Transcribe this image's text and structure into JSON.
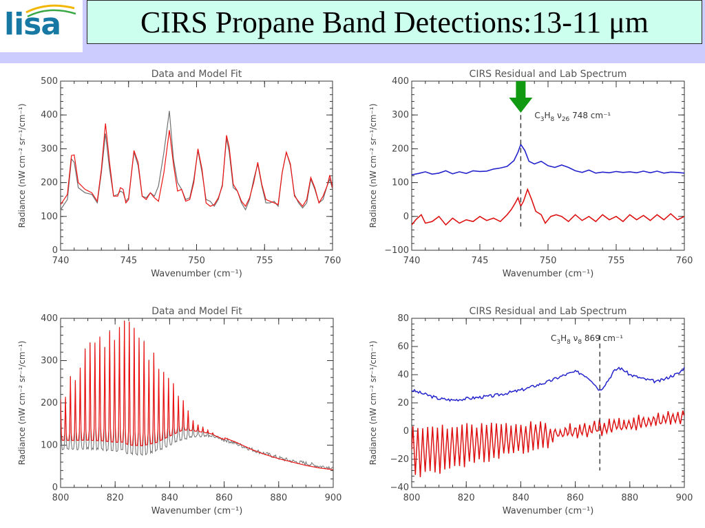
{
  "header": {
    "logo_text": "lisa",
    "title": "CIRS Propane Band Detections:13-11 μm"
  },
  "colors": {
    "data": "#707070",
    "model": "#ee1111",
    "lab": "#2222cc",
    "residual": "#dd1111",
    "arrow": "#119911"
  },
  "chart_data": [
    {
      "type": "line",
      "title": "Data and Model Fit",
      "xlabel": "Wavenumber (cm⁻¹)",
      "ylabel": "Radiance (nW cm⁻² sr⁻¹/cm⁻¹)",
      "xlim": [
        740,
        760
      ],
      "ylim": [
        0,
        500
      ],
      "xticks": [
        740,
        745,
        750,
        755,
        760
      ],
      "yticks": [
        0,
        100,
        200,
        300,
        400,
        500
      ],
      "grid": false,
      "series": [
        {
          "color": "#707070",
          "x": [
            740.0,
            740.5,
            740.8,
            741.0,
            741.3,
            741.8,
            742.3,
            742.7,
            743.0,
            743.3,
            743.6,
            743.9,
            744.2,
            744.4,
            744.6,
            744.8,
            745.0,
            745.4,
            745.7,
            746.0,
            746.3,
            746.6,
            746.9,
            747.2,
            747.6,
            748.0,
            748.3,
            748.6,
            748.9,
            749.2,
            749.5,
            749.8,
            750.1,
            750.4,
            750.7,
            751.0,
            751.3,
            751.6,
            751.9,
            752.2,
            752.4,
            752.7,
            753.0,
            753.3,
            753.6,
            753.9,
            754.2,
            754.5,
            754.8,
            755.1,
            755.4,
            755.7,
            756.0,
            756.3,
            756.6,
            756.9,
            757.2,
            757.5,
            757.8,
            758.1,
            758.4,
            758.7,
            759.0,
            759.3,
            759.6,
            759.8,
            760.0
          ],
          "y": [
            120,
            150,
            270,
            260,
            185,
            170,
            165,
            140,
            230,
            345,
            240,
            160,
            165,
            175,
            170,
            145,
            155,
            290,
            250,
            160,
            155,
            170,
            160,
            190,
            290,
            412,
            270,
            200,
            180,
            150,
            155,
            210,
            295,
            230,
            150,
            145,
            130,
            150,
            195,
            330,
            290,
            185,
            175,
            140,
            120,
            150,
            210,
            255,
            190,
            140,
            140,
            145,
            130,
            230,
            290,
            250,
            165,
            140,
            125,
            140,
            210,
            180,
            140,
            150,
            190,
            210,
            180
          ]
        },
        {
          "color": "#ee1111",
          "x": [
            740.0,
            740.5,
            740.8,
            741.0,
            741.3,
            741.8,
            742.3,
            742.7,
            743.0,
            743.3,
            743.6,
            743.9,
            744.2,
            744.4,
            744.6,
            744.8,
            745.0,
            745.4,
            745.7,
            746.0,
            746.3,
            746.6,
            746.9,
            747.2,
            747.6,
            748.0,
            748.3,
            748.6,
            748.9,
            749.2,
            749.5,
            749.8,
            750.1,
            750.4,
            750.7,
            751.0,
            751.3,
            751.6,
            751.9,
            752.2,
            752.4,
            752.7,
            753.0,
            753.3,
            753.6,
            753.9,
            754.2,
            754.5,
            754.8,
            755.1,
            755.4,
            755.7,
            756.0,
            756.3,
            756.6,
            756.9,
            757.2,
            757.5,
            757.8,
            758.1,
            758.4,
            758.7,
            759.0,
            759.3,
            759.6,
            759.8,
            760.0
          ],
          "y": [
            135,
            165,
            280,
            282,
            200,
            180,
            170,
            145,
            240,
            375,
            260,
            160,
            160,
            185,
            180,
            140,
            150,
            295,
            260,
            160,
            150,
            170,
            155,
            145,
            230,
            355,
            255,
            175,
            180,
            145,
            150,
            200,
            300,
            240,
            140,
            130,
            135,
            155,
            190,
            340,
            305,
            195,
            175,
            145,
            130,
            155,
            200,
            260,
            195,
            150,
            145,
            140,
            135,
            230,
            290,
            255,
            160,
            145,
            130,
            150,
            215,
            185,
            140,
            160,
            190,
            222,
            185
          ]
        },
        {
          "color": "#707070",
          "x": [
            747.95
          ],
          "y": [
            412
          ]
        }
      ]
    },
    {
      "type": "line",
      "title": "CIRS Residual and Lab Spectrum",
      "xlabel": "Wavenumber (cm⁻¹)",
      "ylabel": "Radiance (nW cm⁻² sr⁻¹/cm⁻¹)",
      "xlim": [
        740,
        760
      ],
      "ylim": [
        -100,
        400
      ],
      "xticks": [
        740,
        745,
        750,
        755,
        760
      ],
      "yticks": [
        -100,
        0,
        100,
        200,
        300,
        400
      ],
      "grid": false,
      "vline": 748,
      "annotation": {
        "species": "C3H8",
        "mode": "ν26",
        "text": "748 cm⁻¹"
      },
      "series": [
        {
          "color": "#2222cc",
          "x": [
            740,
            740.5,
            741,
            741.5,
            742,
            742.5,
            743,
            743.5,
            744,
            744.5,
            745,
            745.5,
            746,
            746.5,
            747,
            747.5,
            747.8,
            748.0,
            748.3,
            748.6,
            749,
            749.5,
            750,
            750.5,
            751,
            751.5,
            752,
            752.5,
            753,
            753.5,
            754,
            754.5,
            755,
            755.5,
            756,
            756.5,
            757,
            757.5,
            758,
            758.5,
            759,
            759.5,
            760
          ],
          "y": [
            123,
            127,
            132,
            125,
            128,
            135,
            126,
            132,
            127,
            135,
            133,
            134,
            140,
            143,
            148,
            165,
            190,
            213,
            195,
            163,
            155,
            163,
            150,
            145,
            152,
            145,
            135,
            130,
            137,
            128,
            131,
            129,
            133,
            130,
            132,
            129,
            134,
            129,
            134,
            128,
            131,
            130,
            128
          ]
        },
        {
          "color": "#dd1111",
          "x": [
            740,
            740.3,
            740.7,
            741,
            741.5,
            742,
            742.5,
            743,
            743.5,
            744,
            744.5,
            745,
            745.5,
            746,
            746.5,
            747,
            747.3,
            747.6,
            747.8,
            748.0,
            748.2,
            748.5,
            748.8,
            749.1,
            749.5,
            749.8,
            750.2,
            750.6,
            751,
            751.5,
            752,
            752.5,
            753,
            753.5,
            754,
            754.5,
            755,
            755.5,
            756,
            756.5,
            757,
            757.5,
            758,
            758.5,
            759,
            759.5,
            760
          ],
          "y": [
            -25,
            -10,
            5,
            -20,
            -15,
            0,
            -25,
            -5,
            -20,
            -10,
            -15,
            0,
            -12,
            -5,
            -15,
            5,
            20,
            40,
            55,
            30,
            45,
            80,
            50,
            15,
            5,
            -20,
            0,
            5,
            0,
            -15,
            5,
            -12,
            0,
            -15,
            5,
            -10,
            0,
            -15,
            5,
            -10,
            3,
            -12,
            5,
            -10,
            8,
            -10,
            0
          ]
        }
      ]
    },
    {
      "type": "line",
      "title": "Data and Model Fit",
      "xlabel": "Wavenumber (cm⁻¹)",
      "ylabel": "Radiance (nW cm⁻² sr⁻¹/cm⁻¹)",
      "xlim": [
        800,
        900
      ],
      "ylim": [
        0,
        400
      ],
      "xticks": [
        800,
        820,
        840,
        860,
        880,
        900
      ],
      "yticks": [
        0,
        100,
        200,
        300,
        400
      ],
      "grid": false,
      "envelope": {
        "x": [
          800,
          805,
          810,
          815,
          820,
          823,
          825,
          830,
          835,
          840,
          845,
          850,
          855,
          860,
          865,
          870,
          875,
          880,
          885,
          890,
          895,
          900
        ],
        "peaks_model": [
          205,
          260,
          320,
          350,
          360,
          385,
          355,
          345,
          320,
          270,
          200,
          160,
          140,
          118,
          105,
          90,
          78,
          68,
          60,
          52,
          46,
          42
        ],
        "troughs_data": [
          95,
          85,
          75,
          68,
          62,
          58,
          55,
          55,
          68,
          95,
          125,
          128,
          125,
          112,
          100,
          88,
          78,
          68,
          60,
          55,
          48,
          45
        ],
        "period": 1.8,
        "osc_end": 860,
        "data_extra_noise": 6
      },
      "series": [
        {
          "name": "",
          "color": "#707070"
        },
        {
          "name": "",
          "color": "#ee1111"
        }
      ]
    },
    {
      "type": "line",
      "title": "CIRS Residual and Lab Spectrum",
      "xlabel": "Wavenumber (cm⁻¹)",
      "ylabel": "Radiance (nW cm⁻² sr⁻¹/cm⁻¹)",
      "xlim": [
        800,
        900
      ],
      "ylim": [
        -40,
        80
      ],
      "xticks": [
        800,
        820,
        840,
        860,
        880,
        900
      ],
      "yticks": [
        -40,
        -20,
        0,
        20,
        40,
        60,
        80
      ],
      "grid": false,
      "vline": 869,
      "annotation": {
        "species": "C3H8",
        "mode": "ν8",
        "text": "869 cm⁻¹"
      },
      "series": [
        {
          "color": "#2222cc",
          "x": [
            800,
            805,
            810,
            815,
            820,
            825,
            830,
            835,
            840,
            845,
            850,
            855,
            858,
            860,
            862,
            864,
            866,
            868,
            869,
            870,
            872,
            874,
            876,
            878,
            880,
            885,
            890,
            893,
            895,
            898,
            900
          ],
          "y": [
            29,
            26,
            23,
            22,
            23,
            24,
            25,
            27,
            29,
            32,
            35,
            39,
            41,
            42,
            41,
            39,
            36,
            31,
            29,
            31,
            36,
            42,
            45,
            43,
            40,
            37,
            35,
            37,
            39,
            41,
            45
          ]
        },
        {
          "color": "#dd1111",
          "x": [
            800,
            900
          ],
          "y": [
            -15,
            10
          ]
        }
      ]
    }
  ]
}
